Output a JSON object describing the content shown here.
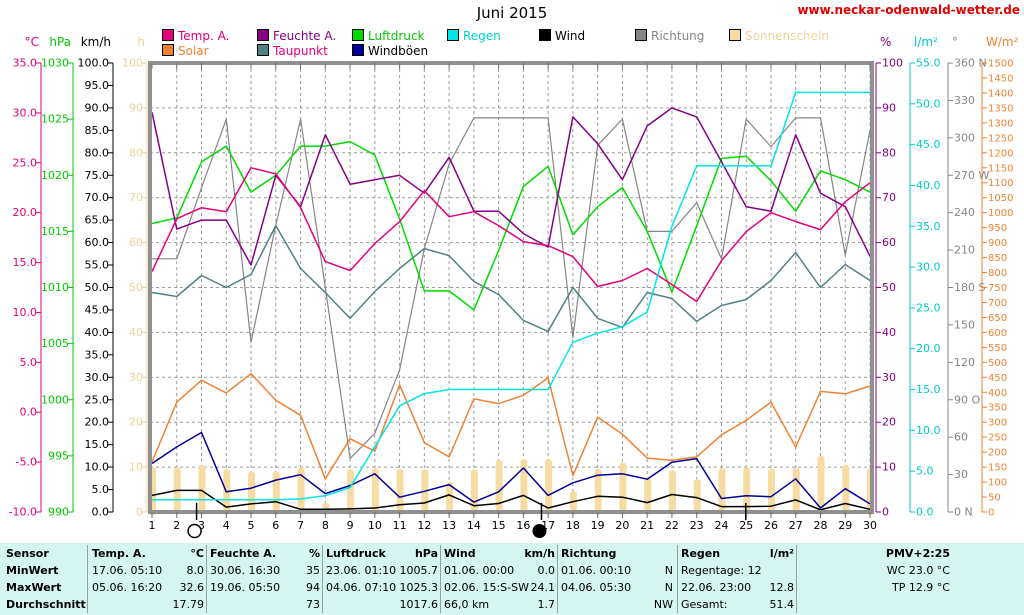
{
  "title": "Juni 2015",
  "website": "www.neckar-odenwald-wetter.de",
  "colors": {
    "temp": "#e4007c",
    "solar": "#f08233",
    "feuchte": "#860086",
    "taupunkt": "#4e8285",
    "luftdruck": "#00dc00",
    "windboeen": "#000099",
    "regen": "#00e6e6",
    "wind": "#000000",
    "richtung": "#858585",
    "sonnenschein": "#f6dca2",
    "url_red": "#e00000",
    "table_bg": "#d4f5f0"
  },
  "legend": {
    "row1": [
      {
        "label": "Temp. A.",
        "swatch": "#e4007c",
        "text": "#e4007c"
      },
      {
        "label": "Feuchte A.",
        "swatch": "#860086",
        "text": "#860086"
      },
      {
        "label": "Luftdruck",
        "swatch": "#00dc00",
        "text": "#00c800"
      },
      {
        "label": "Regen",
        "swatch": "#00e6e6",
        "text": "#00d2d2"
      },
      {
        "label": "Wind",
        "swatch": "#000000",
        "text": "#000000"
      },
      {
        "label": "Richtung",
        "swatch": "#858585",
        "text": "#858585"
      },
      {
        "label": "Sonnenschein",
        "swatch": "#f6dca2",
        "text": "#efd29a"
      }
    ],
    "row2": [
      {
        "label": "Solar",
        "swatch": "#f08233",
        "text": "#f08233"
      },
      {
        "label": "Taupunkt",
        "swatch": "#4e8285",
        "text": "#e4007c"
      },
      {
        "label": "Windböen",
        "swatch": "#000099",
        "text": "#000000"
      }
    ]
  },
  "axes_left": [
    {
      "unit": "°C",
      "color": "#e4007c",
      "labels": [
        "35.0",
        "30.0",
        "25.0",
        "20.0",
        "15.0",
        "10.0",
        "5.0",
        "0.0",
        "-5.0",
        "-10.0"
      ]
    },
    {
      "unit": "hPa",
      "color": "#00c800",
      "labels": [
        "1030",
        "1025",
        "1020",
        "1015",
        "1010",
        "1005",
        "1000",
        "995",
        "990"
      ]
    },
    {
      "unit": "km/h",
      "color": "#000000",
      "labels": [
        "100.0",
        "95.0",
        "90.0",
        "85.0",
        "80.0",
        "75.0",
        "70.0",
        "65.0",
        "60.0",
        "55.0",
        "50.0",
        "45.0",
        "40.0",
        "35.0",
        "30.0",
        "25.0",
        "20.0",
        "15.0",
        "10.0",
        "5.0",
        "0.0"
      ]
    },
    {
      "unit": "h",
      "color": "#efd29a",
      "labels": [
        "100",
        "90",
        "80",
        "70",
        "60",
        "50",
        "40",
        "30",
        "20",
        "10",
        "0"
      ]
    }
  ],
  "axes_right": [
    {
      "unit": "%",
      "color": "#860086",
      "labels": [
        "100",
        "90",
        "80",
        "70",
        "60",
        "50",
        "40",
        "30",
        "20",
        "10",
        "0"
      ]
    },
    {
      "unit": "l/m²",
      "color": "#00caca",
      "labels": [
        "55.0",
        "50.0",
        "45.0",
        "40.0",
        "35.0",
        "30.0",
        "25.0",
        "20.0",
        "15.0",
        "10.0",
        "5.0",
        "0.0"
      ]
    },
    {
      "unit": "°",
      "color": "#858585",
      "labels": [
        "360 N",
        "330",
        "300",
        "270 W",
        "240",
        "210",
        "180 S",
        "150",
        "120",
        "90 O",
        "60",
        "30",
        "0 N"
      ]
    },
    {
      "unit": "W/m²",
      "color": "#f08233",
      "labels": [
        "1500",
        "1450",
        "1400",
        "1350",
        "1300",
        "1250",
        "1200",
        "1150",
        "1100",
        "1050",
        "1000",
        "950",
        "900",
        "850",
        "800",
        "750",
        "700",
        "650",
        "600",
        "550",
        "500",
        "450",
        "400",
        "350",
        "300",
        "250",
        "200",
        "150",
        "100",
        "50",
        "0"
      ]
    }
  ],
  "chart_data": {
    "type": "line",
    "title": "Juni 2015",
    "x_label": "Tag",
    "x": [
      1,
      2,
      3,
      4,
      5,
      6,
      7,
      8,
      9,
      10,
      11,
      12,
      13,
      14,
      15,
      16,
      17,
      18,
      19,
      20,
      21,
      22,
      23,
      24,
      25,
      26,
      27,
      28,
      29,
      30
    ],
    "x_tick_labels": [
      "1",
      "2",
      "3",
      "4",
      "5",
      "6",
      "7",
      "8",
      "9",
      "10",
      "11",
      "12",
      "13",
      "14",
      "15",
      "16",
      "17",
      "18",
      "19",
      "20",
      "21",
      "22",
      "23",
      "24",
      "25",
      "26",
      "27",
      "28",
      "29",
      "30"
    ],
    "grid": true,
    "bars": {
      "name": "Sonnenschein",
      "unit": "h",
      "color": "#f6dca2",
      "min": 0,
      "max": 100,
      "values": [
        10.0,
        10.0,
        10.5,
        9.5,
        9.0,
        9.0,
        10.0,
        2.0,
        9.5,
        9.7,
        9.6,
        9.5,
        6.7,
        9.5,
        11.5,
        11.7,
        11.7,
        4.6,
        9.6,
        11.0,
        7.8,
        9.3,
        7.3,
        9.8,
        10.0,
        9.7,
        9.8,
        12.5,
        10.5,
        9.8
      ]
    },
    "series": [
      {
        "id": "richtung",
        "name": "Richtung",
        "unit": "°",
        "color": "#858585",
        "min": 0,
        "max": 360,
        "values": [
          203,
          203,
          260,
          315,
          136,
          230,
          315,
          180,
          43,
          63,
          114,
          211,
          279,
          316,
          316,
          316,
          316,
          140,
          294,
          315,
          225,
          225,
          248,
          203,
          315,
          293,
          316,
          316,
          206,
          306
        ]
      },
      {
        "id": "solar",
        "name": "Solar",
        "unit": "W/m²",
        "color": "#f08233",
        "min": 0,
        "max": 1500,
        "values": [
          167,
          367,
          440,
          398,
          462,
          373,
          323,
          111,
          245,
          203,
          425,
          232,
          184,
          378,
          362,
          390,
          448,
          122,
          317,
          260,
          180,
          173,
          184,
          258,
          306,
          367,
          217,
          403,
          395,
          421
        ]
      },
      {
        "id": "windboeen",
        "name": "Windböen",
        "unit": "km/h",
        "color": "#000099",
        "min": 0,
        "max": 100,
        "values": [
          10.8,
          14.5,
          17.7,
          4.5,
          5.3,
          7.1,
          8.3,
          4.1,
          5.9,
          8.5,
          3.3,
          4.6,
          6.1,
          2.2,
          4.5,
          9.8,
          3.7,
          6.5,
          8.2,
          8.5,
          7.3,
          11.1,
          11.9,
          3.0,
          3.6,
          3.4,
          7.4,
          0.9,
          5.2,
          1.8
        ]
      },
      {
        "id": "wind",
        "name": "Wind",
        "unit": "km/h",
        "color": "#000000",
        "min": 0,
        "max": 100,
        "values": [
          3.7,
          4.8,
          4.8,
          1.1,
          1.8,
          2.3,
          0.6,
          0.6,
          0.7,
          0.9,
          1.6,
          2.0,
          3.8,
          1.4,
          1.9,
          3.7,
          0.9,
          2.3,
          3.5,
          3.3,
          2.1,
          3.9,
          3.2,
          1.2,
          1.2,
          1.3,
          2.7,
          0.5,
          1.9,
          0.6
        ]
      },
      {
        "id": "taupunkt",
        "name": "Taupunkt",
        "unit": "°C",
        "color": "#4e8285",
        "min": -10,
        "max": 35,
        "values": [
          12.0,
          11.6,
          13.7,
          12.5,
          13.8,
          18.7,
          14.4,
          12.0,
          9.4,
          12.1,
          14.4,
          16.4,
          15.7,
          13.1,
          11.8,
          9.2,
          8.1,
          12.5,
          9.4,
          8.5,
          12.0,
          11.4,
          9.1,
          10.7,
          11.3,
          13.2,
          16.0,
          12.5,
          14.8,
          13.2
        ]
      },
      {
        "id": "luftdruck",
        "name": "Luftdruck",
        "unit": "hPa",
        "color": "#00dc00",
        "min": 990,
        "max": 1030,
        "values": [
          1015.7,
          1016.2,
          1021.2,
          1022.6,
          1018.5,
          1020.0,
          1022.6,
          1022.6,
          1023.0,
          1021.8,
          1016.1,
          1009.7,
          1009.7,
          1008.0,
          1013.3,
          1019.0,
          1020.8,
          1014.7,
          1017.2,
          1018.9,
          1015.0,
          1009.6,
          1015.5,
          1021.5,
          1021.7,
          1019.5,
          1016.8,
          1020.4,
          1019.6,
          1018.5
        ]
      },
      {
        "id": "feuchte_a",
        "name": "Feuchte A.",
        "unit": "%",
        "color": "#860086",
        "min": 0,
        "max": 100,
        "values": [
          89,
          63,
          65,
          65,
          55,
          75,
          68,
          84,
          73,
          74,
          75,
          71,
          79,
          67,
          67,
          62,
          59,
          88,
          82,
          74,
          86,
          90,
          88,
          78,
          68,
          67,
          84,
          71,
          68,
          57
        ]
      },
      {
        "id": "temp_a",
        "name": "Temp. A.",
        "unit": "°C",
        "color": "#e4007c",
        "min": -10,
        "max": 35,
        "values": [
          14.1,
          19.4,
          20.5,
          20.1,
          24.5,
          23.9,
          20.5,
          15.1,
          14.2,
          16.9,
          19.1,
          22.2,
          19.6,
          20.1,
          18.7,
          17.1,
          16.7,
          15.6,
          12.6,
          13.2,
          14.4,
          12.8,
          11.1,
          15.2,
          18.1,
          20.0,
          19.1,
          18.3,
          21.1,
          23.0
        ]
      },
      {
        "id": "regen",
        "name": "Regen",
        "unit": "l/m²",
        "color": "#00e6e6",
        "min": 0,
        "max": 55,
        "values": [
          1.5,
          1.5,
          1.5,
          1.5,
          1.5,
          1.5,
          1.6,
          2.0,
          3.0,
          8.0,
          13.0,
          14.5,
          15.0,
          15.0,
          15.0,
          15.0,
          15.0,
          20.8,
          21.9,
          22.7,
          24.5,
          35.0,
          42.4,
          42.4,
          42.4,
          42.4,
          51.4,
          51.4,
          51.4,
          51.4
        ]
      }
    ],
    "moon_markers": [
      {
        "day": 2.72,
        "symbol": "full-moon"
      },
      {
        "day": 16.65,
        "symbol": "new-moon"
      },
      {
        "day": 24.9,
        "symbol": "tick"
      }
    ]
  },
  "table": {
    "row_labels": [
      "Sensor",
      "MinWert",
      "MaxWert",
      "Durchschnitt"
    ],
    "columns": [
      {
        "name": "Temp. A.",
        "unit": "°C",
        "rows": [
          [
            "17.06.  05:10",
            "8.0"
          ],
          [
            "05.06.  16:20",
            "32.6"
          ],
          [
            "",
            "17.79"
          ]
        ]
      },
      {
        "name": "Feuchte A.",
        "unit": "%",
        "rows": [
          [
            "30.06.  16:30",
            "35"
          ],
          [
            "19.06.  05:50",
            "94"
          ],
          [
            "",
            "73"
          ]
        ]
      },
      {
        "name": "Luftdruck",
        "unit": "hPa",
        "rows": [
          [
            "23.06.  01:10",
            "1005.7"
          ],
          [
            "04.06.  07:10",
            "1025.3"
          ],
          [
            "",
            "1017.6"
          ]
        ]
      },
      {
        "name": "Wind",
        "unit": "km/h",
        "rows": [
          [
            "01.06.  00:00",
            "0.0"
          ],
          [
            "02.06.  15:S-SW",
            "24.1"
          ],
          [
            "66,0 km",
            "1.7"
          ]
        ]
      },
      {
        "name": "Richtung",
        "unit": "",
        "rows": [
          [
            "01.06.  00:10",
            "N"
          ],
          [
            "04.06.  05:30",
            "N"
          ],
          [
            "",
            "NW"
          ]
        ]
      },
      {
        "name": "Regen",
        "unit": "l/m²",
        "rows": [
          [
            "Regentage: 12",
            ""
          ],
          [
            "22.06.  23:00",
            "12.8"
          ],
          [
            "Gesamt:",
            "51.4"
          ]
        ]
      }
    ],
    "extra": {
      "title": "PMV+2:25",
      "lines": [
        "WC 23.0 °C",
        "TP 12.9 °C",
        ""
      ]
    }
  }
}
